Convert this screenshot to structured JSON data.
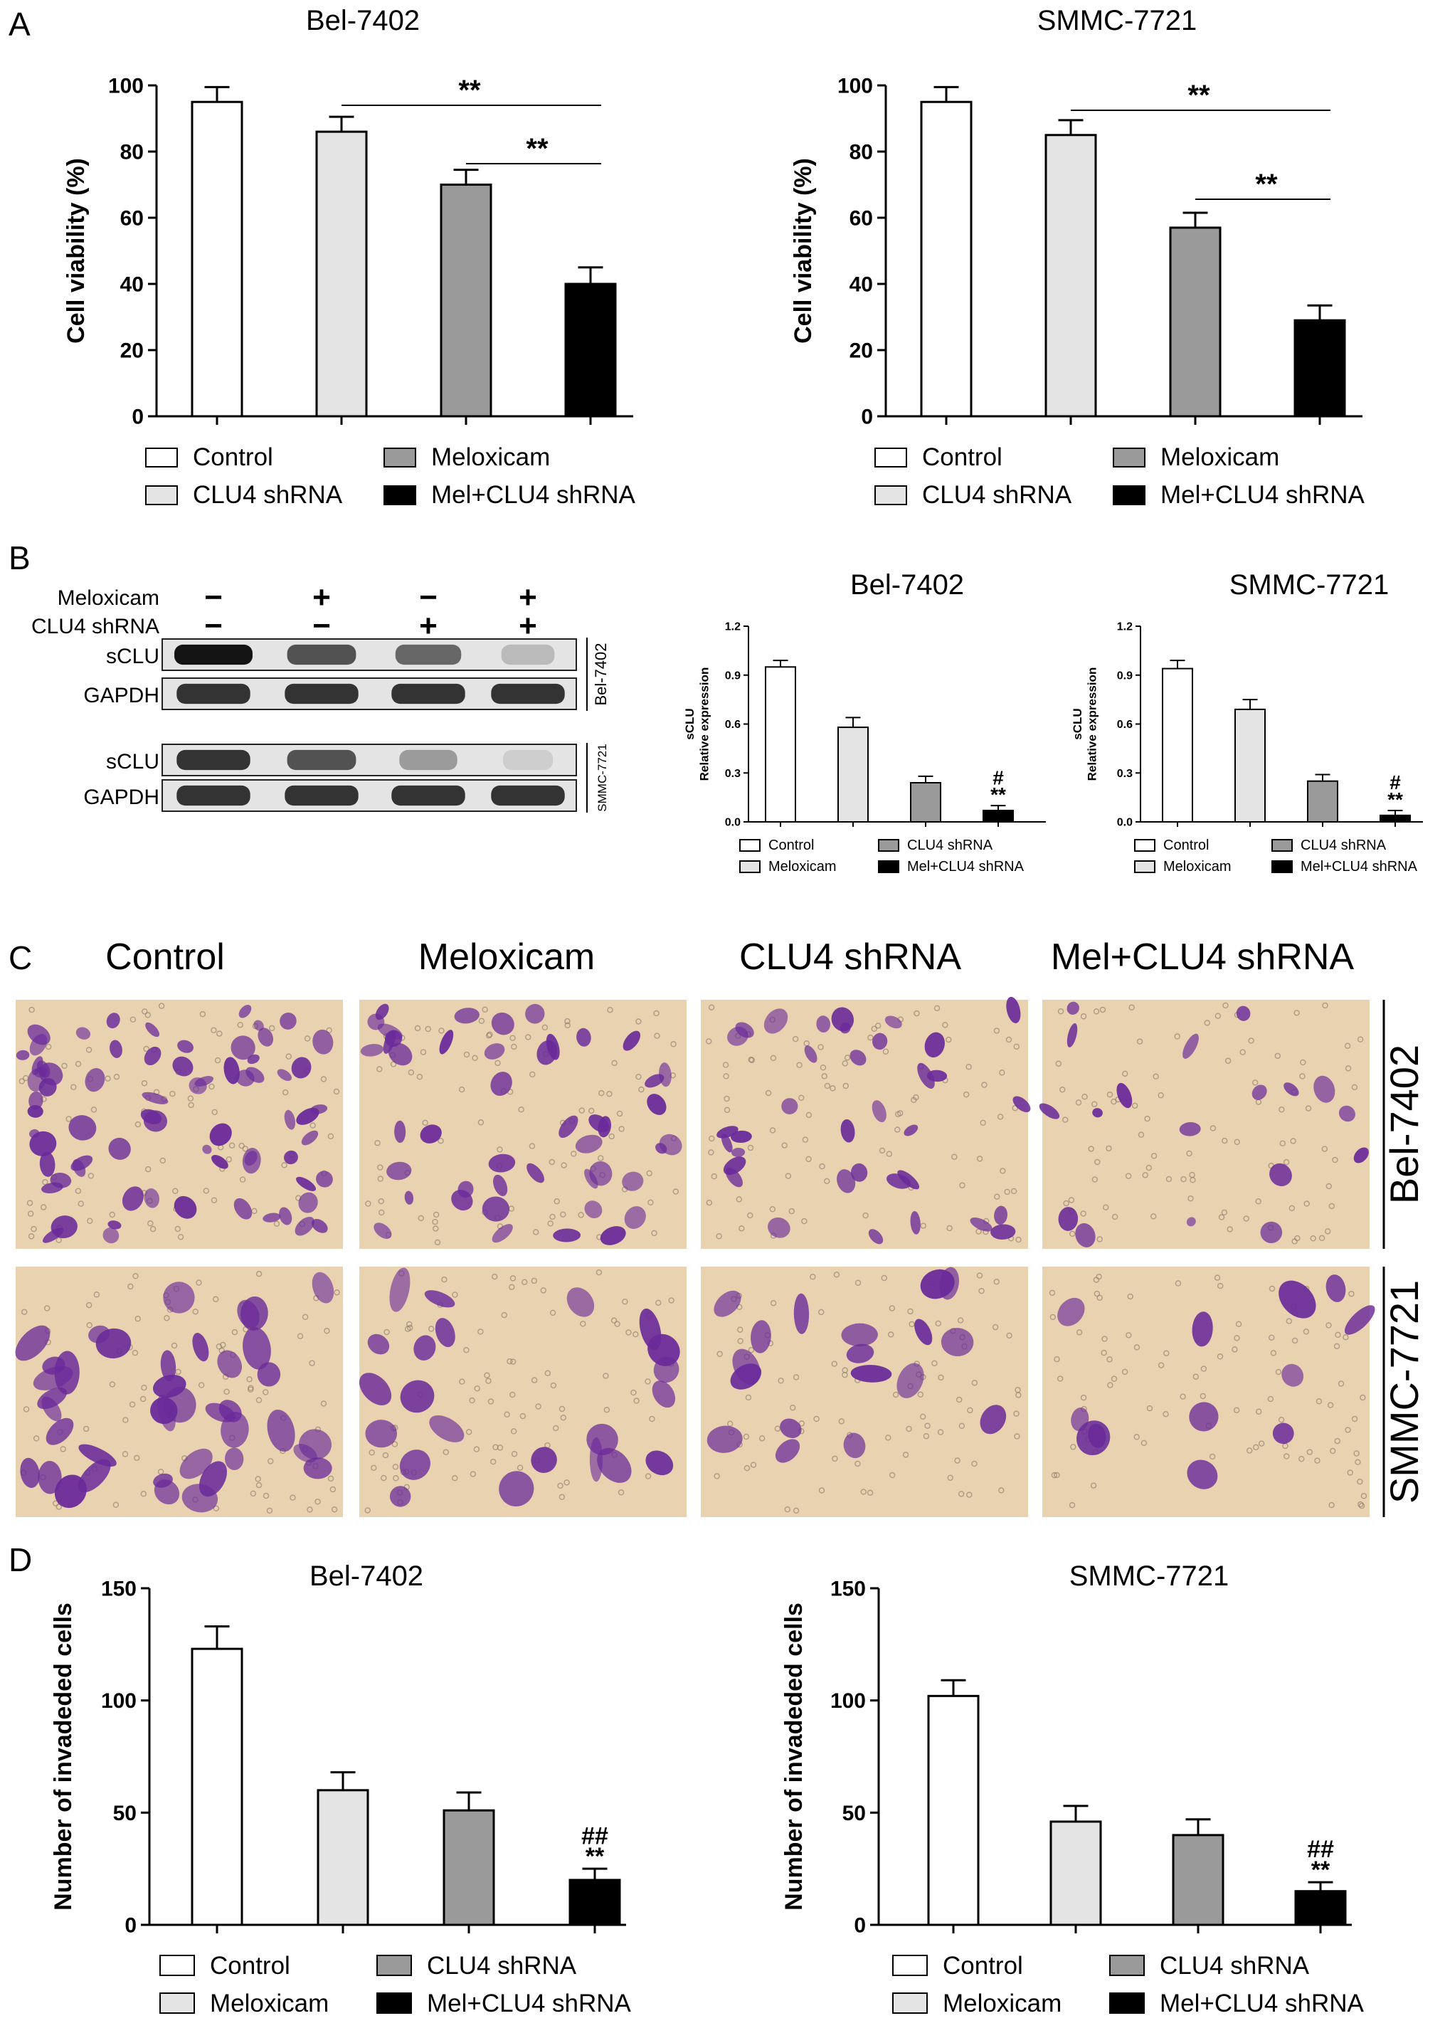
{
  "panel_labels": {
    "A": "A",
    "B": "B",
    "C": "C",
    "D": "D"
  },
  "colors": {
    "control": "#ffffff",
    "light": "#e4e4e4",
    "mid": "#9a9a9a",
    "dark": "#000000",
    "stain": "#6a2a9a",
    "membrane": "#e9d2b0",
    "blot_bg": "#e4e4e4",
    "blot_band": "#141414"
  },
  "chart_data": [
    {
      "type": "bar",
      "id": "A-left",
      "title": "Bel-7402",
      "ylabel": "Cell viability (%)",
      "xlabel": "",
      "ylim": [
        0,
        100
      ],
      "yticks": [
        "0",
        "20",
        "40",
        "60",
        "80",
        "100"
      ],
      "categories": [
        "Control",
        "CLU4 shRNA",
        "Meloxicam",
        "Mel+CLU4 shRNA"
      ],
      "values": [
        95,
        86,
        70,
        40
      ],
      "errors": [
        4.5,
        4.5,
        4.5,
        5
      ],
      "bar_colors": [
        "#ffffff",
        "#e4e4e4",
        "#9a9a9a",
        "#000000"
      ],
      "brackets": [
        {
          "from": 1,
          "to": 3,
          "label": "**"
        },
        {
          "from": 2,
          "to": 3,
          "label": "**"
        }
      ],
      "bar_marks": [],
      "legend": [
        "Control",
        "CLU4 shRNA",
        "Meloxicam",
        "Mel+CLU4 shRNA"
      ],
      "legend_layout": "A",
      "grid": false
    },
    {
      "type": "bar",
      "id": "A-right",
      "title": "SMMC-7721",
      "ylabel": "Cell viability (%)",
      "xlabel": "",
      "ylim": [
        0,
        100
      ],
      "yticks": [
        "0",
        "20",
        "40",
        "60",
        "80",
        "100"
      ],
      "categories": [
        "Control",
        "CLU4 shRNA",
        "Meloxicam",
        "Mel+CLU4 shRNA"
      ],
      "values": [
        95,
        85,
        57,
        29
      ],
      "errors": [
        4.5,
        4.5,
        4.5,
        4.5
      ],
      "bar_colors": [
        "#ffffff",
        "#e4e4e4",
        "#9a9a9a",
        "#000000"
      ],
      "brackets": [
        {
          "from": 1,
          "to": 3,
          "label": "**"
        },
        {
          "from": 2,
          "to": 3,
          "label": "**"
        }
      ],
      "bar_marks": [],
      "legend": [
        "Control",
        "CLU4 shRNA",
        "Meloxicam",
        "Mel+CLU4 shRNA"
      ],
      "legend_layout": "A",
      "grid": false
    },
    {
      "type": "bar",
      "id": "B-left",
      "title": "Bel-7402",
      "ylabel": "sCLU Relative expression",
      "xlabel": "",
      "ylim": [
        0,
        1.2
      ],
      "yticks": [
        "0.0",
        "0.3",
        "0.6",
        "0.9",
        "1.2"
      ],
      "categories": [
        "Control",
        "Meloxicam",
        "CLU4 shRNA",
        "Mel+CLU4 shRNA"
      ],
      "values": [
        0.95,
        0.58,
        0.24,
        0.07
      ],
      "errors": [
        0.04,
        0.06,
        0.04,
        0.03
      ],
      "bar_colors": [
        "#ffffff",
        "#e4e4e4",
        "#9a9a9a",
        "#000000"
      ],
      "brackets": [],
      "bar_marks": [
        "",
        "",
        "",
        "#|**"
      ],
      "legend": [
        "Control",
        "Meloxicam",
        "CLU4 shRNA",
        "Mel+CLU4 shRNA"
      ],
      "legend_layout": "B",
      "grid": false
    },
    {
      "type": "bar",
      "id": "B-right",
      "title": "SMMC-7721",
      "ylabel": "sCLU Relative expression",
      "xlabel": "",
      "ylim": [
        0,
        1.2
      ],
      "yticks": [
        "0.0",
        "0.3",
        "0.6",
        "0.9",
        "1.2"
      ],
      "categories": [
        "Control",
        "Meloxicam",
        "CLU4 shRNA",
        "Mel+CLU4 shRNA"
      ],
      "values": [
        0.94,
        0.69,
        0.25,
        0.04
      ],
      "errors": [
        0.05,
        0.06,
        0.04,
        0.03
      ],
      "bar_colors": [
        "#ffffff",
        "#e4e4e4",
        "#9a9a9a",
        "#000000"
      ],
      "brackets": [],
      "bar_marks": [
        "",
        "",
        "",
        "#|**"
      ],
      "legend": [
        "Control",
        "Meloxicam",
        "CLU4 shRNA",
        "Mel+CLU4 shRNA"
      ],
      "legend_layout": "B",
      "grid": false
    },
    {
      "type": "bar",
      "id": "D-left",
      "title": "Bel-7402",
      "ylabel": "Number of invadeded cells",
      "xlabel": "",
      "ylim": [
        0,
        150
      ],
      "yticks": [
        "0",
        "50",
        "100",
        "150"
      ],
      "categories": [
        "Control",
        "Meloxicam",
        "CLU4 shRNA",
        "Mel+CLU4 shRNA"
      ],
      "values": [
        123,
        60,
        51,
        20
      ],
      "errors": [
        10,
        8,
        8,
        5
      ],
      "bar_colors": [
        "#ffffff",
        "#e4e4e4",
        "#9a9a9a",
        "#000000"
      ],
      "brackets": [],
      "bar_marks": [
        "",
        "",
        "",
        "##|**"
      ],
      "legend": [
        "Control",
        "Meloxicam",
        "CLU4 shRNA",
        "Mel+CLU4 shRNA"
      ],
      "legend_layout": "D",
      "grid": false
    },
    {
      "type": "bar",
      "id": "D-right",
      "title": "SMMC-7721",
      "ylabel": "Number of invadeded cells",
      "xlabel": "",
      "ylim": [
        0,
        150
      ],
      "yticks": [
        "0",
        "50",
        "100",
        "150"
      ],
      "categories": [
        "Control",
        "Meloxicam",
        "CLU4 shRNA",
        "Mel+CLU4 shRNA"
      ],
      "values": [
        102,
        46,
        40,
        15
      ],
      "errors": [
        7,
        7,
        7,
        4
      ],
      "bar_colors": [
        "#ffffff",
        "#e4e4e4",
        "#9a9a9a",
        "#000000"
      ],
      "brackets": [],
      "bar_marks": [
        "",
        "",
        "",
        "##|**"
      ],
      "legend": [
        "Control",
        "Meloxicam",
        "CLU4 shRNA",
        "Mel+CLU4 shRNA"
      ],
      "legend_layout": "D",
      "grid": false
    }
  ],
  "blot": {
    "conditions": [
      {
        "label": "Meloxicam",
        "values": [
          "−",
          "+",
          "−",
          "+"
        ]
      },
      {
        "label": "CLU4 shRNA",
        "values": [
          "−",
          "−",
          "+",
          "+"
        ]
      }
    ],
    "groups": [
      {
        "cell_line": "Bel-7402",
        "rows": [
          {
            "label": "sCLU",
            "intensities": [
              1.0,
              0.7,
              0.6,
              0.2
            ]
          },
          {
            "label": "GAPDH",
            "intensities": [
              0.85,
              0.85,
              0.85,
              0.85
            ]
          }
        ]
      },
      {
        "cell_line": "SMMC-7721",
        "rows": [
          {
            "label": "sCLU",
            "intensities": [
              0.85,
              0.7,
              0.35,
              0.1
            ]
          },
          {
            "label": "GAPDH",
            "intensities": [
              0.85,
              0.85,
              0.85,
              0.85
            ]
          }
        ]
      }
    ]
  },
  "micrographs": {
    "columns": [
      "Control",
      "Meloxicam",
      "CLU4 shRNA",
      "Mel+CLU4 shRNA"
    ],
    "rows": [
      "Bel-7402",
      "SMMC-7721"
    ]
  }
}
